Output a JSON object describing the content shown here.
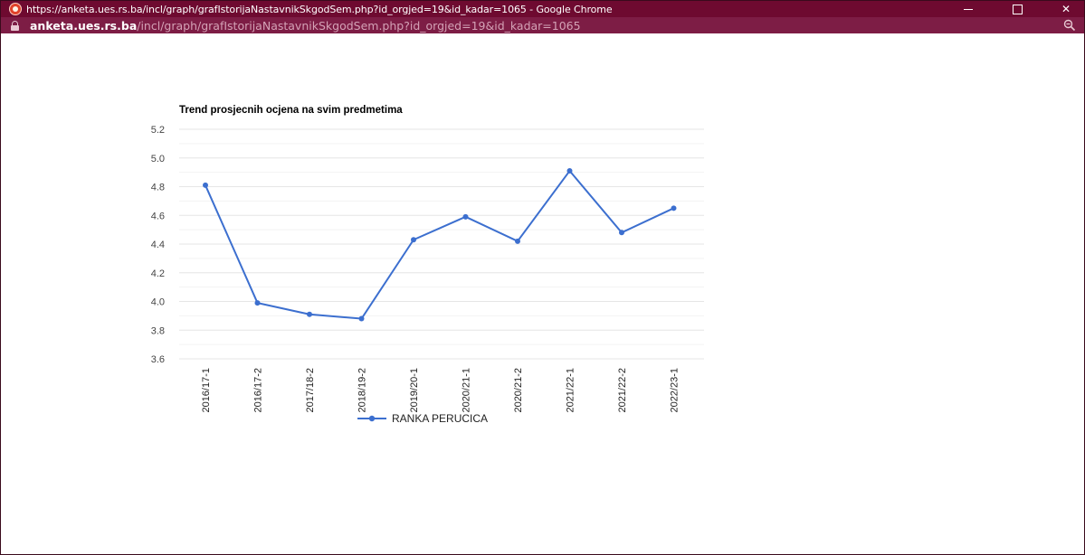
{
  "window": {
    "title": "https://anketa.ues.rs.ba/incl/graph/grafIstorijaNastavnikSkgodSem.php?id_orgjed=19&id_kadar=1065 - Google Chrome",
    "controls": {
      "minimize_icon": "minimize-icon",
      "maximize_icon": "maximize-icon",
      "close_icon": "close-icon",
      "close_glyph": "✕"
    }
  },
  "address_bar": {
    "domain": "anketa.ues.rs.ba",
    "path": "/incl/graph/grafIstorijaNastavnikSkgodSem.php?id_orgjed=19&id_kadar=1065",
    "lock_icon": "lock-icon",
    "zoom_icon": "zoom-icon"
  },
  "colors": {
    "titlebar": "#6e0a30",
    "addressbar": "#7d1d45",
    "series": "#3c6fcf",
    "grid": "#e6e6e6"
  },
  "chart_data": {
    "type": "line",
    "title": "Trend prosjecnih ocjena na svim predmetima",
    "categories": [
      "2016/17-1",
      "2016/17-2",
      "2017/18-2",
      "2018/19-2",
      "2019/20-1",
      "2020/21-1",
      "2020/21-2",
      "2021/22-1",
      "2021/22-2",
      "2022/23-1"
    ],
    "series": [
      {
        "name": "RANKA PERUCICA",
        "values": [
          4.81,
          3.99,
          3.91,
          3.88,
          4.43,
          4.59,
          4.42,
          4.91,
          4.48,
          4.65
        ]
      }
    ],
    "yticks": [
      "5.2",
      "5.0",
      "4.8",
      "4.6",
      "4.4",
      "4.2",
      "4.0",
      "3.8",
      "3.6"
    ],
    "ylim": [
      3.6,
      5.2
    ],
    "grid": true,
    "legend_position": "bottom-center"
  }
}
